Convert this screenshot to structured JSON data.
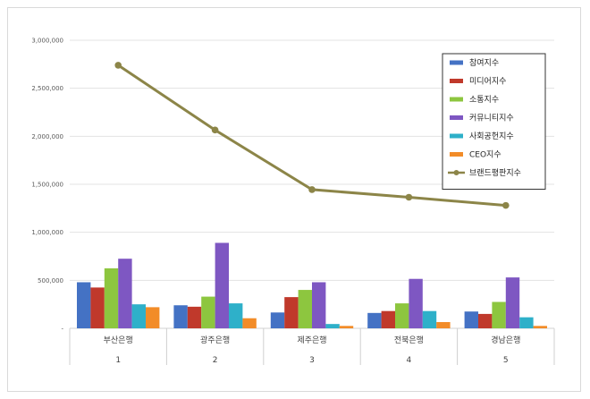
{
  "chart_data": {
    "type": "bar",
    "categories": [
      "부산은행",
      "광주은행",
      "제주은행",
      "전북은행",
      "경남은행"
    ],
    "category_index": [
      "1",
      "2",
      "3",
      "4",
      "5"
    ],
    "ylim": [
      0,
      3000000
    ],
    "y_ticks": [
      "-",
      "500,000",
      "1,000,000",
      "1,500,000",
      "2,000,000",
      "2,500,000",
      "3,000,000"
    ],
    "grid": true,
    "legend_position": "top-right",
    "series": [
      {
        "name": "참여지수",
        "kind": "bar",
        "color": "#4472C4",
        "values": [
          480000,
          240000,
          165000,
          160000,
          175000
        ]
      },
      {
        "name": "미디어지수",
        "kind": "bar",
        "color": "#C0392B",
        "values": [
          425000,
          225000,
          325000,
          180000,
          150000
        ]
      },
      {
        "name": "소통지수",
        "kind": "bar",
        "color": "#8DC63F",
        "values": [
          625000,
          330000,
          400000,
          260000,
          275000
        ]
      },
      {
        "name": "커뮤니티지수",
        "kind": "bar",
        "color": "#7E57C2",
        "values": [
          725000,
          890000,
          480000,
          515000,
          530000
        ]
      },
      {
        "name": "사회공헌지수",
        "kind": "bar",
        "color": "#2EB0C9",
        "values": [
          250000,
          260000,
          45000,
          180000,
          115000
        ]
      },
      {
        "name": "CEO지수",
        "kind": "bar",
        "color": "#F28C28",
        "values": [
          220000,
          105000,
          25000,
          65000,
          25000
        ]
      },
      {
        "name": "브랜드평판지수",
        "kind": "line",
        "color": "#8C8548",
        "values": [
          2740000,
          2065000,
          1445000,
          1365000,
          1280000
        ]
      }
    ]
  }
}
